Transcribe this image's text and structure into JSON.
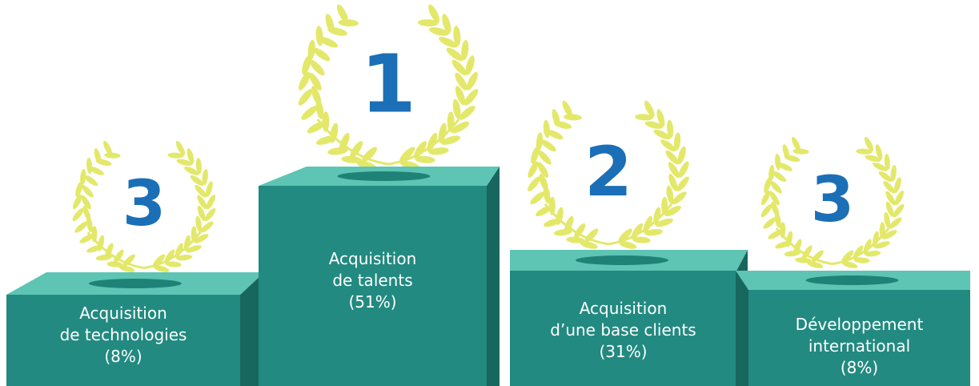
{
  "podiums": [
    {
      "rank": "3",
      "lines": [
        "Acquisition",
        "de technologies",
        "(8%)"
      ]
    },
    {
      "rank": "1",
      "lines": [
        "Acquisition",
        "de talents",
        "(51%)"
      ]
    },
    {
      "rank": "2",
      "lines": [
        "Acquisition",
        "d’une base clients",
        "(31%)"
      ]
    },
    {
      "rank": "3",
      "lines": [
        "Développement",
        "international",
        "(8%)"
      ]
    }
  ]
}
